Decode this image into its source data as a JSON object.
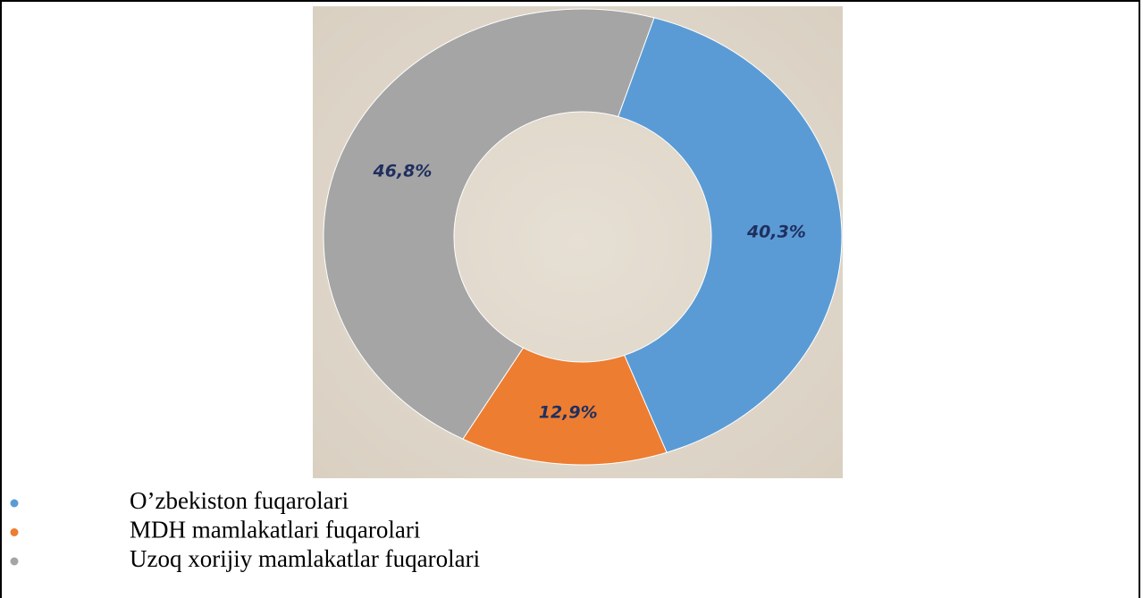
{
  "chart_data": {
    "type": "donut",
    "categories": [
      "O’zbekiston fuqarolari",
      "MDH mamlakatlari fuqarolari",
      "Uzoq xorijiy mamlakatlar fuqarolari"
    ],
    "values": [
      40.3,
      12.9,
      46.8
    ],
    "value_labels": [
      "40,3%",
      "12,9%",
      "46,8%"
    ],
    "colors": [
      "#5b9bd5",
      "#ed7d31",
      "#a5a5a5"
    ]
  }
}
